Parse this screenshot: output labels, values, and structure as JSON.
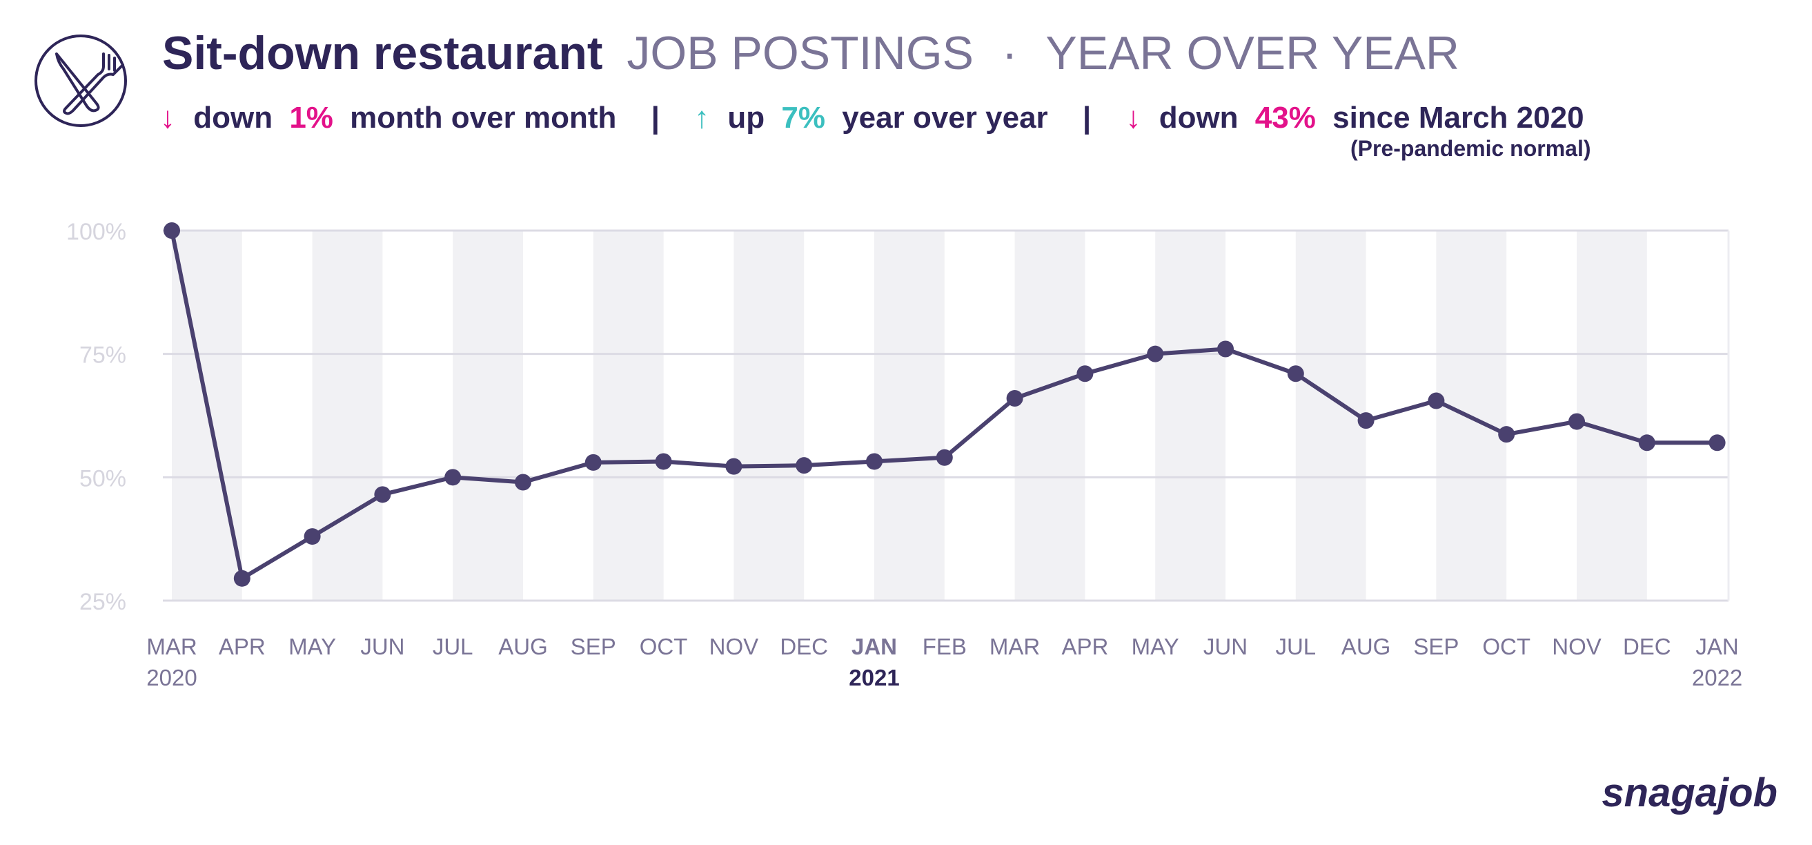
{
  "header": {
    "title": "Sit-down restaurant",
    "subtitle": "JOB POSTINGS",
    "separator": "·",
    "subtitle2": "YEAR OVER YEAR",
    "icon": "fork-knife-icon"
  },
  "stats": [
    {
      "arrow": "↓",
      "direction": "down",
      "value": "1%",
      "label": "month over month",
      "color": "#e3128a"
    },
    {
      "arrow": "↑",
      "direction": "up",
      "value": "7%",
      "label": "year over year",
      "color": "#3bbfbf"
    },
    {
      "arrow": "↓",
      "direction": "down",
      "value": "43%",
      "label": "since March 2020",
      "color": "#e3128a"
    }
  ],
  "stat_divider": "|",
  "note": "(Pre-pandemic normal)",
  "brand": "snagajob",
  "colors": {
    "line": "#4a416f",
    "title": "#2e2558",
    "muted": "#7a7496",
    "band": "#f1f1f4",
    "grid": "#dcdbe4",
    "down": "#e3128a",
    "up": "#3bbfbf"
  },
  "chart_data": {
    "type": "line",
    "categories": [
      "MAR",
      "APR",
      "MAY",
      "JUN",
      "JUL",
      "AUG",
      "SEP",
      "OCT",
      "NOV",
      "DEC",
      "JAN",
      "FEB",
      "MAR",
      "APR",
      "MAY",
      "JUN",
      "JUL",
      "AUG",
      "SEP",
      "OCT",
      "NOV",
      "DEC",
      "JAN"
    ],
    "year_labels": [
      {
        "index": 0,
        "label": "2020",
        "color": "#7a7496"
      },
      {
        "index": 10,
        "label": "2021",
        "color": "#2e2558"
      },
      {
        "index": 22,
        "label": "2022",
        "color": "#7a7496"
      }
    ],
    "series": [
      {
        "values": [
          100,
          29.5,
          38,
          46.5,
          50,
          49,
          53,
          53.2,
          52.2,
          52.4,
          53.2,
          54,
          66,
          71,
          75,
          76,
          71,
          61.5,
          65.5,
          58.7,
          61.3,
          57,
          57
        ]
      }
    ],
    "ylim": [
      25,
      100
    ],
    "yticks": [
      100,
      75,
      50,
      25
    ],
    "ytick_labels": [
      "100%",
      "75%",
      "50%",
      "25%"
    ],
    "grid": true,
    "alternating_bands": true
  }
}
